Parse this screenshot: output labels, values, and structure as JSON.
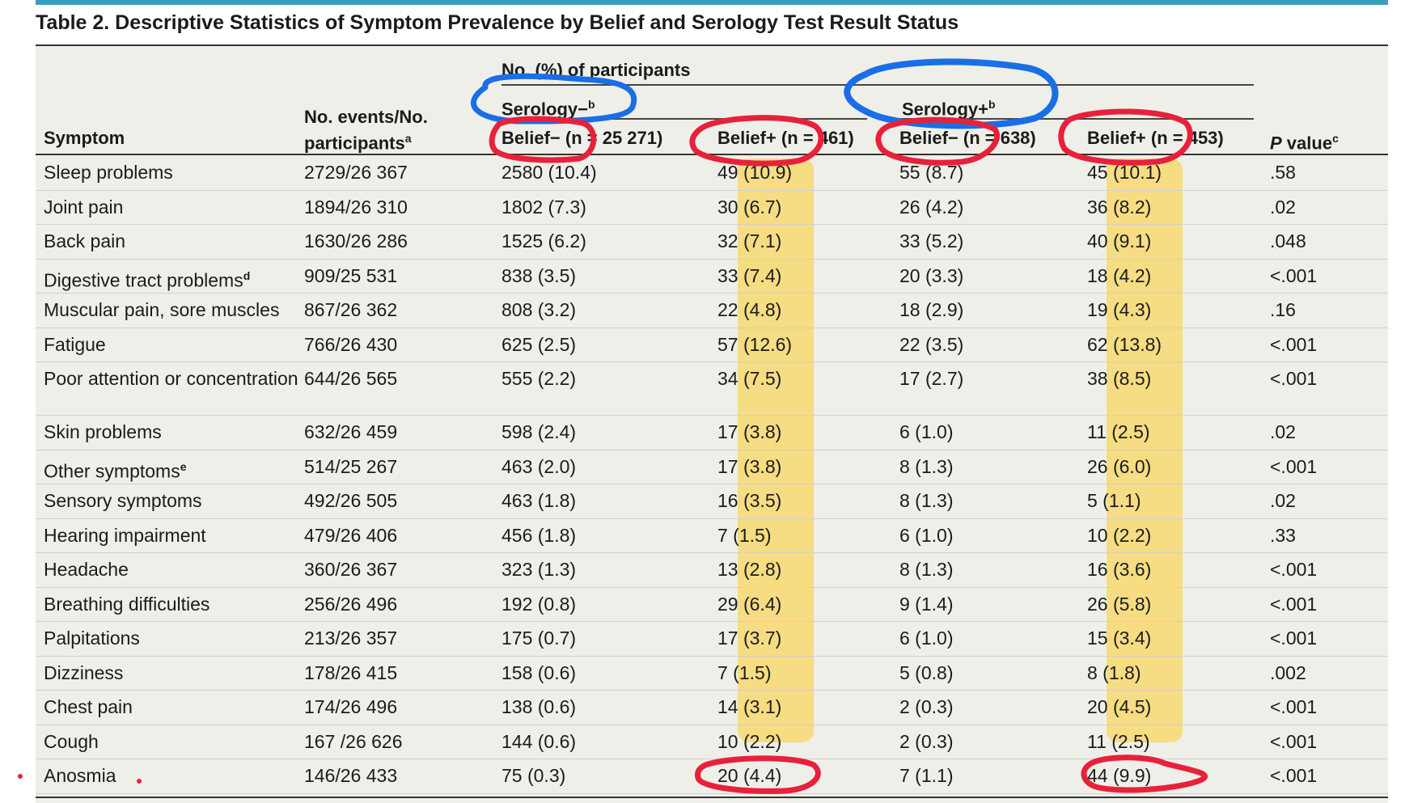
{
  "table": {
    "title": "Table 2. Descriptive Statistics of Symptom Prevalence by Belief and Serology Test Result Status",
    "headers": {
      "symptom": "Symptom",
      "events_line1": "No. events/No.",
      "events_line2": "participants",
      "events_sup": "a",
      "group_label": "No. (%) of participants",
      "serology_neg": "Serology−",
      "serology_neg_sup": "b",
      "serology_pos": "Serology+",
      "serology_pos_sup": "b",
      "belief_neg_sneg": "Belief− (n = 25 271)",
      "belief_pos_sneg": "Belief+ (n = 461)",
      "belief_neg_spos": "Belief− (n = 638)",
      "belief_pos_spos": "Belief+ (n = 453)",
      "pvalue_p": "P",
      "pvalue_rest": " value",
      "pvalue_sup": "c"
    },
    "rows": [
      {
        "symptom": "Sleep problems",
        "sup": "",
        "events": "2729/26 367",
        "c1": "2580 (10.4)",
        "c2": "49 (10.9)",
        "c3": "55 (8.7)",
        "c4": "45 (10.1)",
        "p": ".58"
      },
      {
        "symptom": "Joint pain",
        "sup": "",
        "events": "1894/26 310",
        "c1": "1802 (7.3)",
        "c2": "30 (6.7)",
        "c3": "26 (4.2)",
        "c4": "36 (8.2)",
        "p": ".02"
      },
      {
        "symptom": "Back pain",
        "sup": "",
        "events": "1630/26 286",
        "c1": "1525 (6.2)",
        "c2": "32 (7.1)",
        "c3": "33 (5.2)",
        "c4": "40 (9.1)",
        "p": ".048"
      },
      {
        "symptom": "Digestive tract problems",
        "sup": "d",
        "events": "909/25 531",
        "c1": "838 (3.5)",
        "c2": "33 (7.4)",
        "c3": "20 (3.3)",
        "c4": "18 (4.2)",
        "p": "<.001"
      },
      {
        "symptom": "Muscular pain, sore muscles",
        "sup": "",
        "events": "867/26 362",
        "c1": "808 (3.2)",
        "c2": "22 (4.8)",
        "c3": "18 (2.9)",
        "c4": "19 (4.3)",
        "p": ".16"
      },
      {
        "symptom": "Fatigue",
        "sup": "",
        "events": "766/26 430",
        "c1": "625 (2.5)",
        "c2": "57 (12.6)",
        "c3": "22 (3.5)",
        "c4": "62 (13.8)",
        "p": "<.001"
      },
      {
        "symptom": "Poor attention or concentration",
        "sup": "",
        "events": "644/26 565",
        "c1": "555 (2.2)",
        "c2": "34 (7.5)",
        "c3": "17 (2.7)",
        "c4": "38 (8.5)",
        "p": "<.001"
      },
      {
        "symptom": "Skin problems",
        "sup": "",
        "events": "632/26 459",
        "c1": "598 (2.4)",
        "c2": "17 (3.8)",
        "c3": "6 (1.0)",
        "c4": "11 (2.5)",
        "p": ".02"
      },
      {
        "symptom": "Other symptoms",
        "sup": "e",
        "events": "514/25 267",
        "c1": "463 (2.0)",
        "c2": "17 (3.8)",
        "c3": "8 (1.3)",
        "c4": "26 (6.0)",
        "p": "<.001"
      },
      {
        "symptom": "Sensory symptoms",
        "sup": "",
        "events": "492/26 505",
        "c1": "463 (1.8)",
        "c2": "16 (3.5)",
        "c3": "8 (1.3)",
        "c4": "5 (1.1)",
        "p": ".02"
      },
      {
        "symptom": "Hearing impairment",
        "sup": "",
        "events": "479/26 406",
        "c1": "456 (1.8)",
        "c2": "7 (1.5)",
        "c3": "6 (1.0)",
        "c4": "10 (2.2)",
        "p": ".33"
      },
      {
        "symptom": "Headache",
        "sup": "",
        "events": "360/26 367",
        "c1": "323 (1.3)",
        "c2": "13 (2.8)",
        "c3": "8 (1.3)",
        "c4": "16 (3.6)",
        "p": "<.001"
      },
      {
        "symptom": "Breathing difficulties",
        "sup": "",
        "events": "256/26 496",
        "c1": "192 (0.8)",
        "c2": "29 (6.4)",
        "c3": "9 (1.4)",
        "c4": "26 (5.8)",
        "p": "<.001"
      },
      {
        "symptom": "Palpitations",
        "sup": "",
        "events": "213/26 357",
        "c1": "175 (0.7)",
        "c2": "17 (3.7)",
        "c3": "6 (1.0)",
        "c4": "15 (3.4)",
        "p": "<.001"
      },
      {
        "symptom": "Dizziness",
        "sup": "",
        "events": "178/26 415",
        "c1": "158 (0.6)",
        "c2": "7 (1.5)",
        "c3": "5 (0.8)",
        "c4": "8 (1.8)",
        "p": ".002"
      },
      {
        "symptom": "Chest pain",
        "sup": "",
        "events": "174/26 496",
        "c1": "138 (0.6)",
        "c2": "14 (3.1)",
        "c3": "2 (0.3)",
        "c4": "20 (4.5)",
        "p": "<.001"
      },
      {
        "symptom": "Cough",
        "sup": "",
        "events": "167 /26 626",
        "c1": "144 (0.6)",
        "c2": "10 (2.2)",
        "c3": "2 (0.3)",
        "c4": "11 (2.5)",
        "p": "<.001"
      },
      {
        "symptom": "Anosmia",
        "sup": "",
        "events": "146/26 433",
        "c1": "75 (0.3)",
        "c2": "20 (4.4)",
        "c3": "7 (1.1)",
        "c4": "44 (9.9)",
        "p": "<.001"
      }
    ]
  },
  "annotations": {
    "blue_ink": "#1a6ee6",
    "red_ink": "#e8213a",
    "highlight": "#f8d45a"
  }
}
